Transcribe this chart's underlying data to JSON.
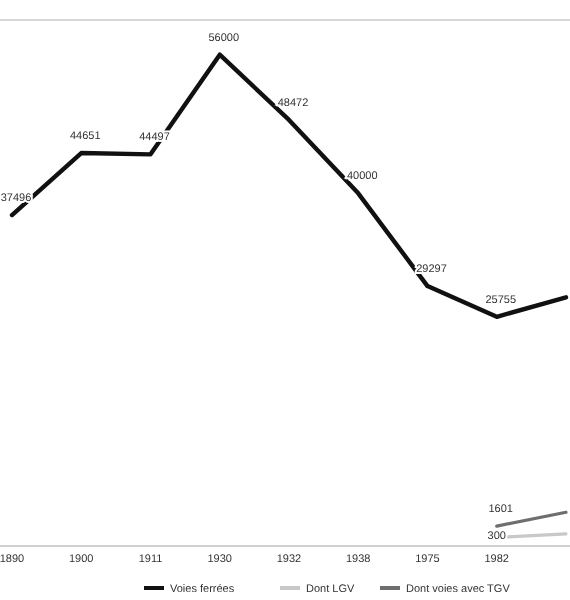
{
  "chart_data": {
    "type": "line",
    "categories": [
      "1890",
      "1900",
      "1911",
      "1930",
      "1932",
      "1938",
      "1975",
      "1982",
      null
    ],
    "ylim": [
      0,
      60000
    ],
    "tick_labels": "x",
    "legend": "bottom",
    "line_style": "solid",
    "series": [
      {
        "name": "Voies ferrées",
        "color": "#111111",
        "values": [
          37496,
          44651,
          44497,
          56000,
          48472,
          40000,
          29297,
          25755,
          28000
        ],
        "value_labels": [
          "37496",
          "44651",
          "44497",
          "56000",
          "48472",
          "40000",
          "29297",
          "25755",
          null
        ]
      },
      {
        "name": "Dont LGV",
        "color": "#c8c8c8",
        "values": [
          null,
          null,
          null,
          null,
          null,
          null,
          null,
          300,
          700
        ],
        "value_labels": [
          null,
          null,
          null,
          null,
          null,
          null,
          null,
          "300",
          null
        ]
      },
      {
        "name": "Dont voies avec TGV",
        "color": "#6e6e6e",
        "values": [
          null,
          null,
          null,
          null,
          null,
          null,
          null,
          1601,
          3200
        ],
        "value_labels": [
          null,
          null,
          null,
          null,
          null,
          null,
          null,
          "1601",
          null
        ]
      }
    ]
  }
}
